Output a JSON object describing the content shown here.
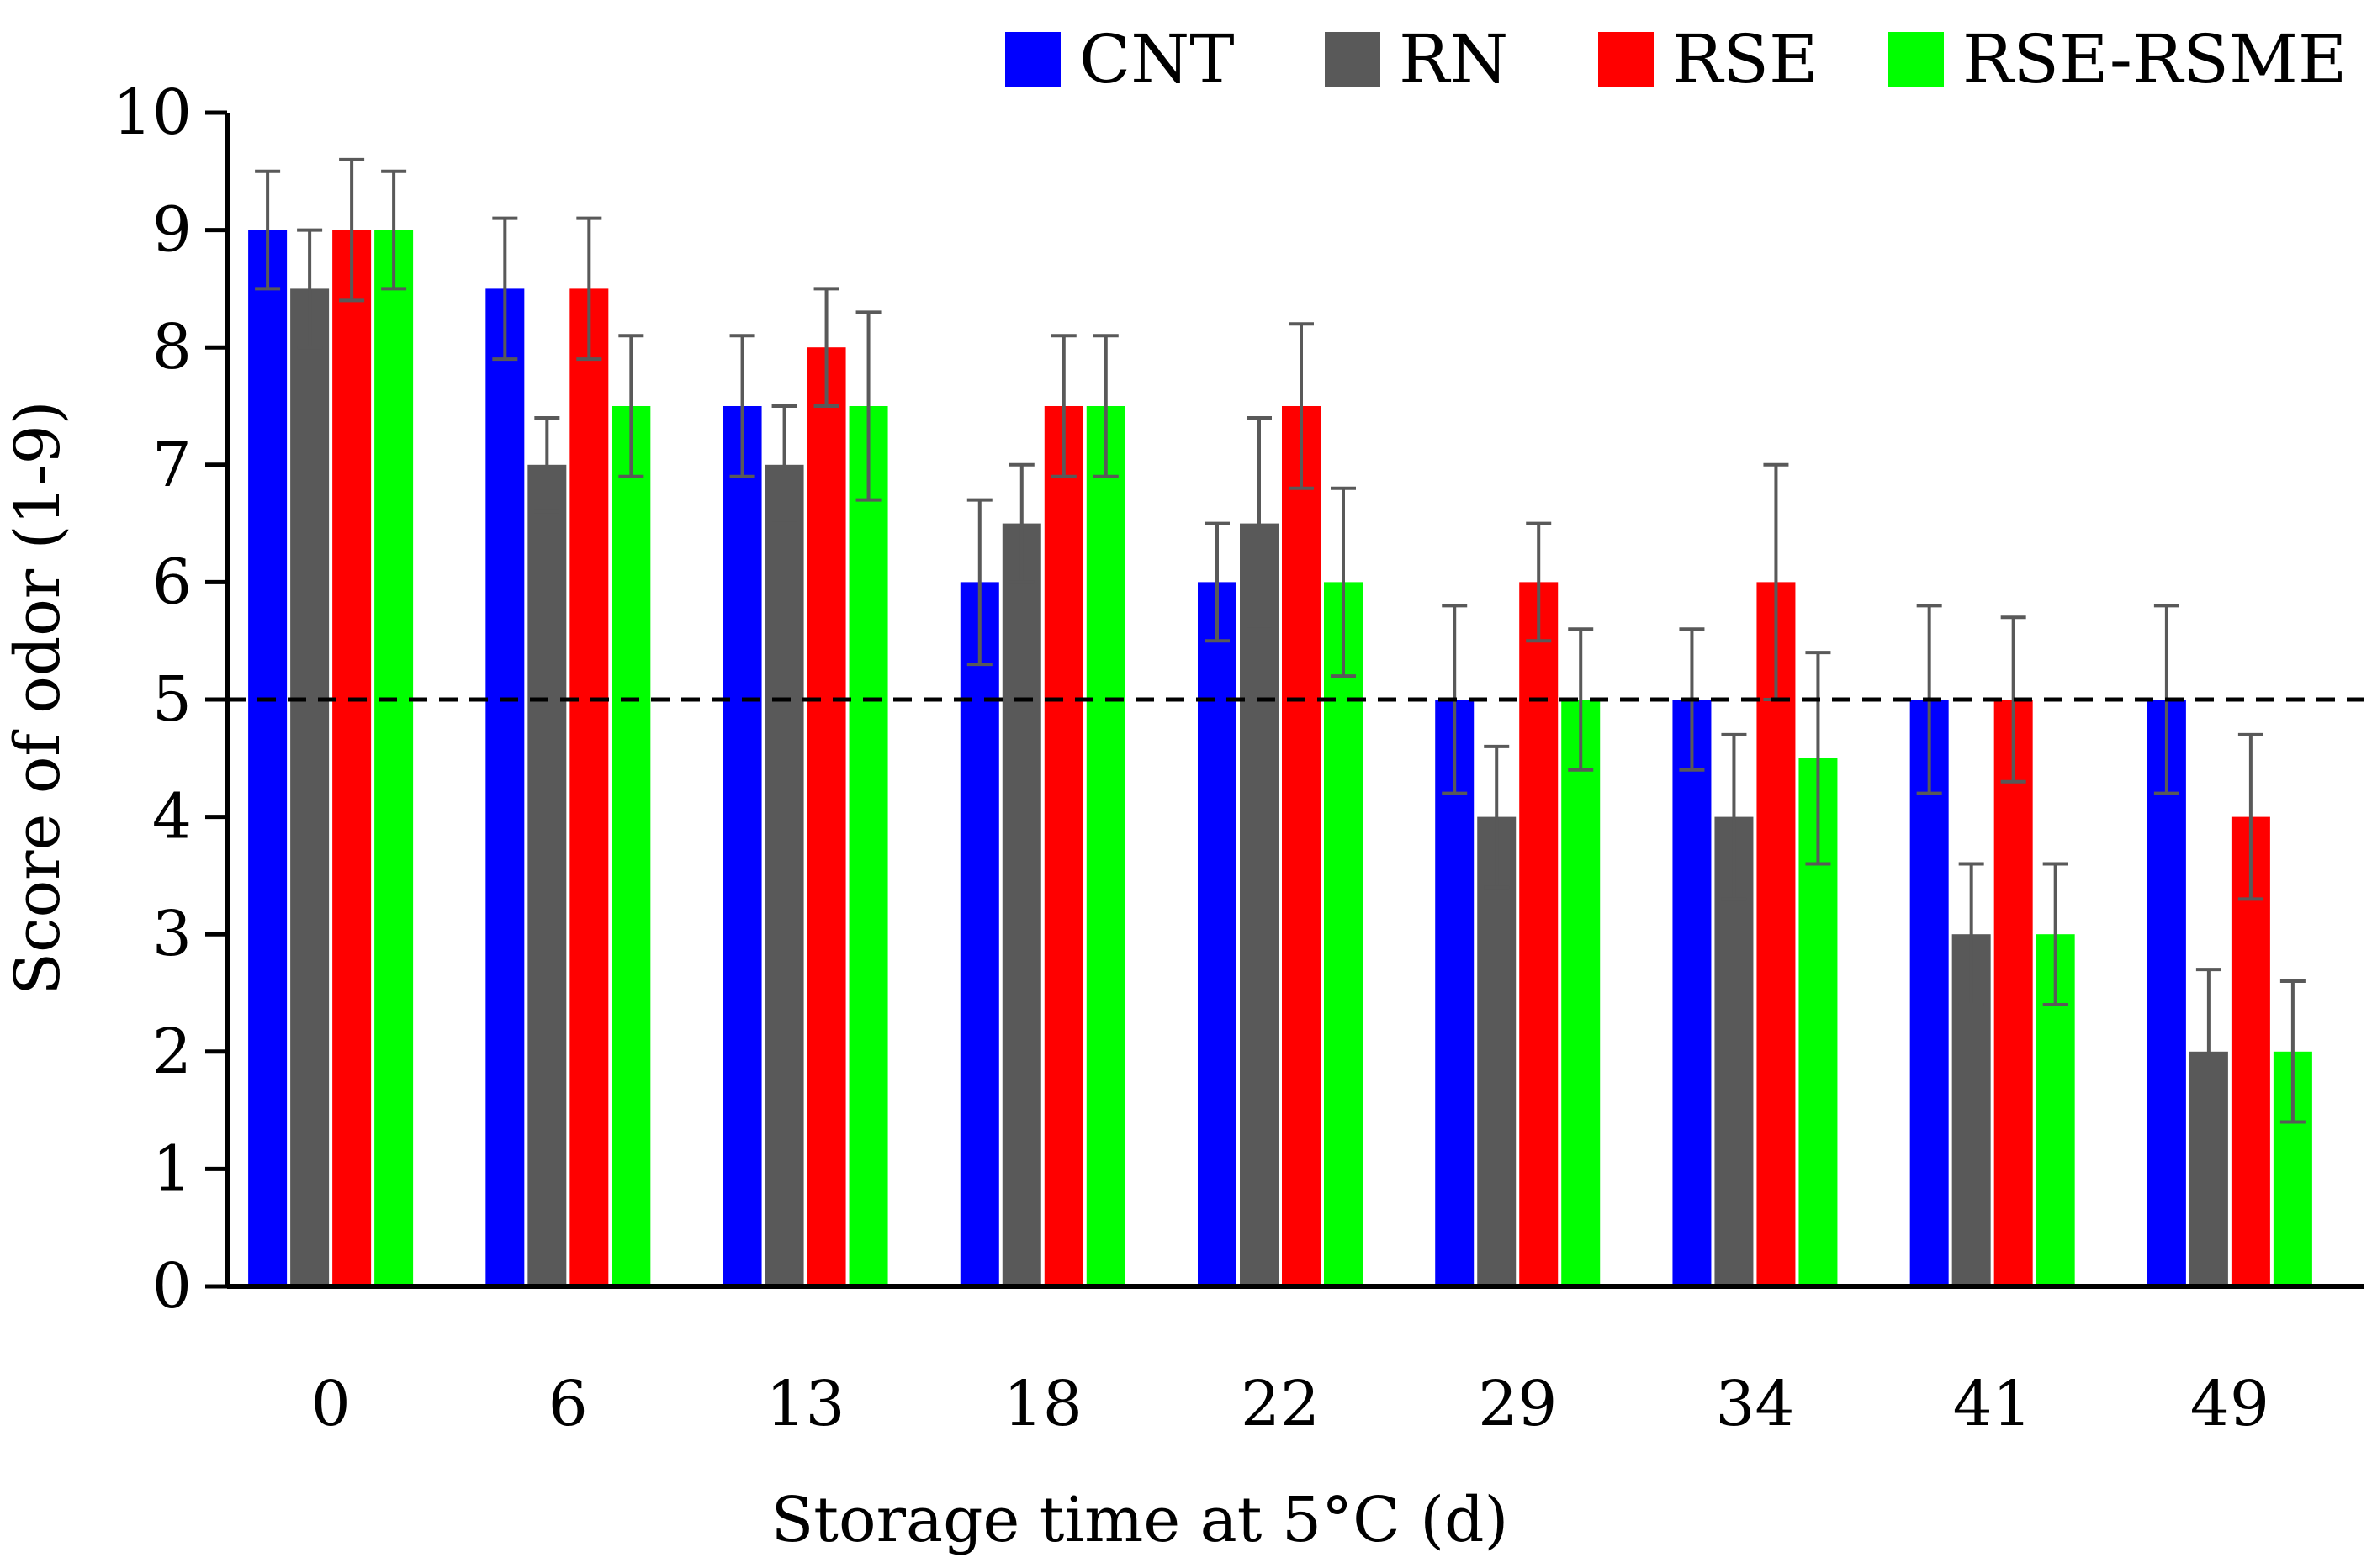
{
  "chart_data": {
    "type": "bar",
    "title": "",
    "xlabel": "Storage time at 5°C (d)",
    "ylabel": "Score of odor (1-9)",
    "categories": [
      "0",
      "6",
      "13",
      "18",
      "22",
      "29",
      "34",
      "41",
      "49"
    ],
    "ylim": [
      0,
      10
    ],
    "yticks": [
      "0",
      "1",
      "2",
      "3",
      "4",
      "5",
      "6",
      "7",
      "8",
      "9",
      "10"
    ],
    "grid": false,
    "legend_position": "top-right",
    "threshold_line": {
      "value": 5,
      "style": "dashed",
      "color": "#000000"
    },
    "series": [
      {
        "name": "CNT",
        "color": "#0000FF",
        "values": [
          9,
          8.5,
          7.5,
          6,
          6,
          5,
          5,
          5,
          5
        ],
        "errors": [
          0.5,
          0.6,
          0.6,
          0.7,
          0.5,
          0.8,
          0.6,
          0.8,
          0.8
        ]
      },
      {
        "name": "RN",
        "color": "#595959",
        "values": [
          8.5,
          7,
          7,
          6.5,
          6.5,
          4,
          4,
          3,
          2
        ],
        "errors": [
          0.5,
          0.4,
          0.5,
          0.5,
          0.9,
          0.6,
          0.7,
          0.6,
          0.7
        ]
      },
      {
        "name": "RSE",
        "color": "#FF0000",
        "values": [
          9,
          8.5,
          8,
          7.5,
          7.5,
          6,
          6,
          5,
          4
        ],
        "errors": [
          0.6,
          0.6,
          0.5,
          0.6,
          0.7,
          0.5,
          1.0,
          0.7,
          0.7
        ]
      },
      {
        "name": "RSE-RSME",
        "color": "#00FF00",
        "values": [
          9,
          7.5,
          7.5,
          7.5,
          6,
          5,
          4.5,
          3,
          2
        ],
        "errors": [
          0.5,
          0.6,
          0.8,
          0.6,
          0.8,
          0.6,
          0.9,
          0.6,
          0.6
        ]
      }
    ],
    "error_bar_color": "#595959"
  }
}
